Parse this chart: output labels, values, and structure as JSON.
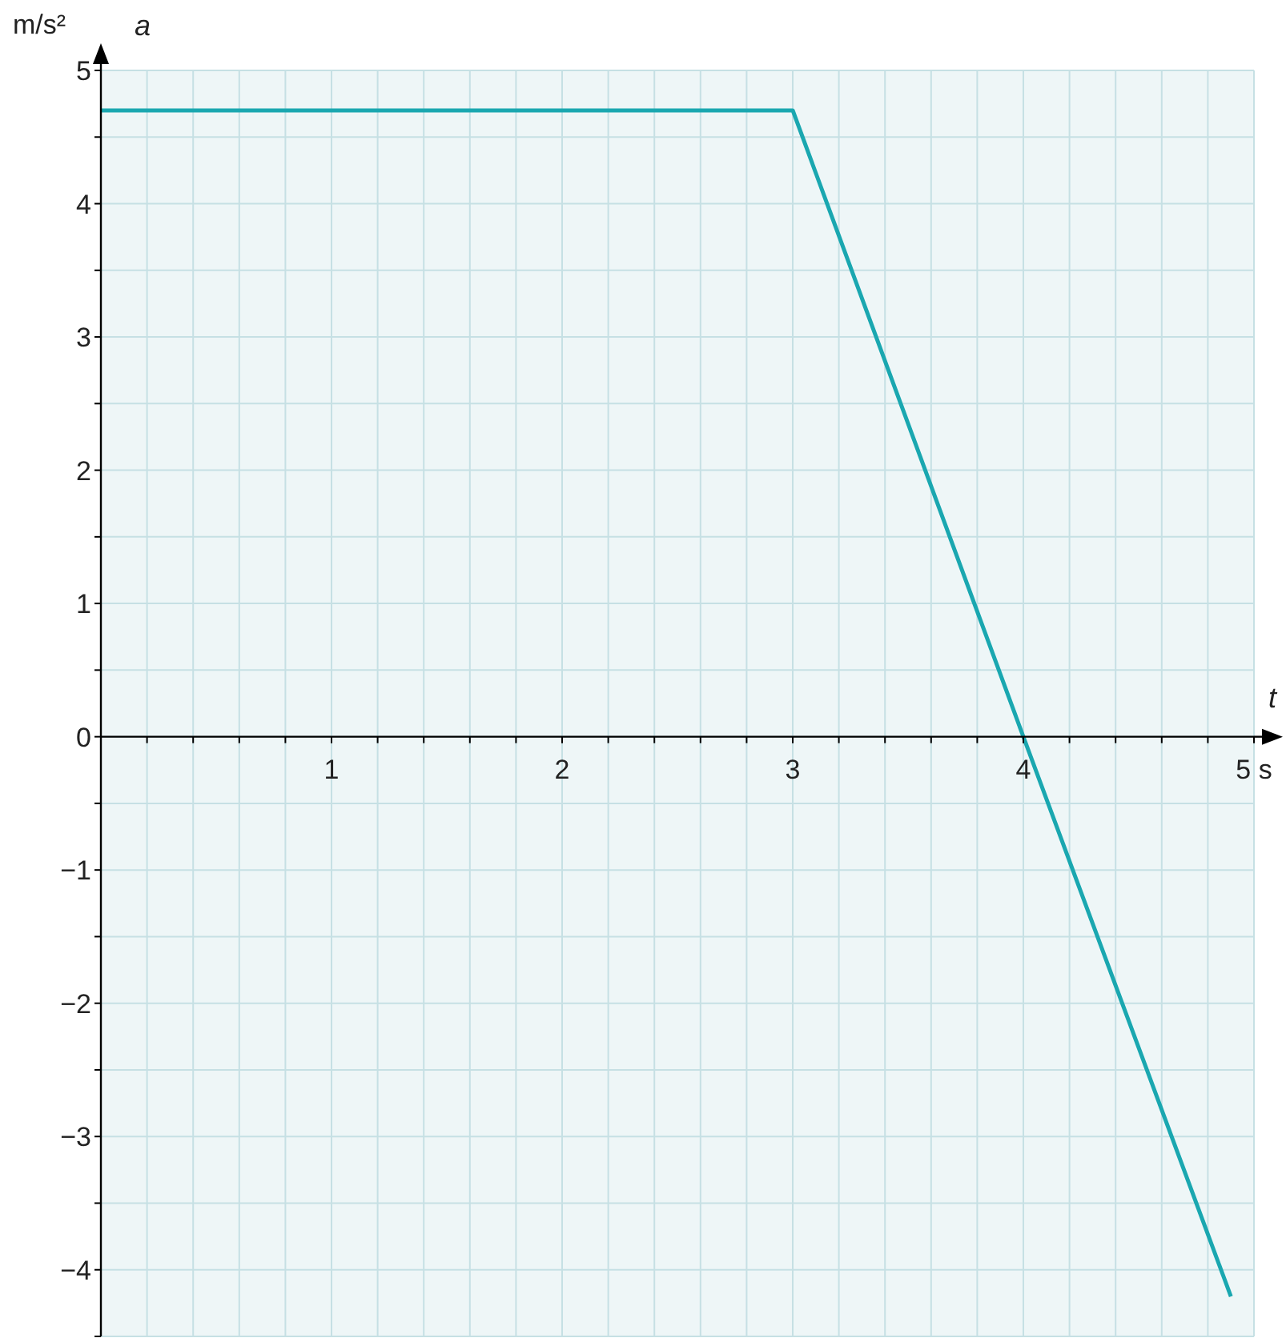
{
  "chart_data": {
    "type": "line",
    "xlabel": "t",
    "ylabel": "a",
    "annotations": [
      "m/s²"
    ],
    "grid": true,
    "xlim": [
      0,
      5
    ],
    "ylim": [
      -4.5,
      5
    ],
    "xticks": [
      {
        "value": 0,
        "label": null
      },
      {
        "value": 0.2,
        "label": null
      },
      {
        "value": 0.4,
        "label": null
      },
      {
        "value": 0.6,
        "label": null
      },
      {
        "value": 0.8,
        "label": null
      },
      1,
      {
        "value": 1.2,
        "label": null
      },
      {
        "value": 1.4,
        "label": null
      },
      {
        "value": 1.6,
        "label": null
      },
      {
        "value": 1.8,
        "label": null
      },
      2,
      {
        "value": 2.2,
        "label": null
      },
      {
        "value": 2.4,
        "label": null
      },
      {
        "value": 2.6,
        "label": null
      },
      {
        "value": 2.8,
        "label": null
      },
      3,
      {
        "value": 3.2,
        "label": null
      },
      {
        "value": 3.4,
        "label": null
      },
      {
        "value": 3.6,
        "label": null
      },
      {
        "value": 3.8,
        "label": null
      },
      4,
      {
        "value": 4.2,
        "label": null
      },
      {
        "value": 4.4,
        "label": null
      },
      {
        "value": 4.6,
        "label": null
      },
      {
        "value": 4.8,
        "label": null
      },
      {
        "value": 5,
        "label": "5 s"
      }
    ],
    "yticks": [
      {
        "value": -4.5,
        "label": null
      },
      {
        "value": -4,
        "label": "−4"
      },
      {
        "value": -3.5,
        "label": null
      },
      {
        "value": -3,
        "label": "−3"
      },
      {
        "value": -2.5,
        "label": null
      },
      {
        "value": -2,
        "label": "−2"
      },
      {
        "value": -1.5,
        "label": null
      },
      {
        "value": -1,
        "label": "−1"
      },
      {
        "value": -0.5,
        "label": null
      },
      0,
      {
        "value": 0.5,
        "label": null
      },
      1,
      {
        "value": 1.5,
        "label": null
      },
      2,
      {
        "value": 2.5,
        "label": null
      },
      3,
      {
        "value": 3.5,
        "label": null
      },
      4,
      {
        "value": 4.5,
        "label": null
      },
      5
    ],
    "series": [
      {
        "color": "#1aa7b0",
        "x": [
          0,
          3,
          4,
          4.9
        ],
        "values": [
          4.7,
          4.7,
          0,
          -4.2
        ]
      }
    ]
  }
}
